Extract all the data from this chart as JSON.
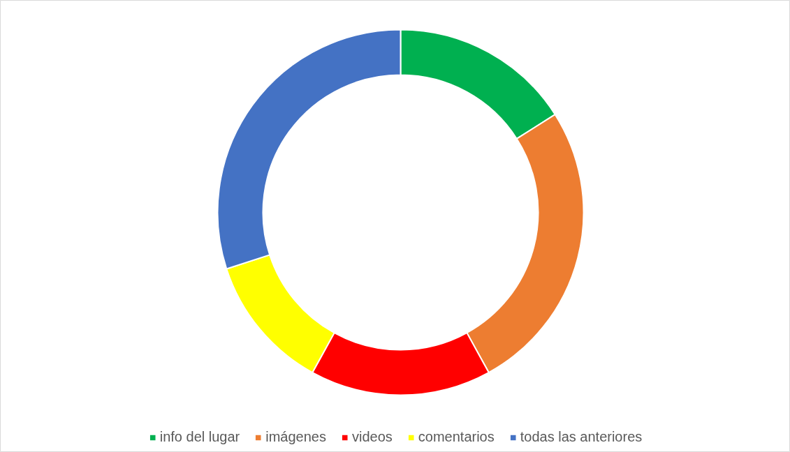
{
  "chart_data": {
    "type": "donut",
    "categories": [
      "info del lugar",
      "imágenes",
      "videos",
      "comentarios",
      "todas las anteriores"
    ],
    "values": [
      16,
      26,
      16,
      12,
      30
    ],
    "colors": [
      "#00b050",
      "#ed7d31",
      "#ff0000",
      "#ffff00",
      "#4472c4"
    ],
    "legend": "bottom"
  }
}
